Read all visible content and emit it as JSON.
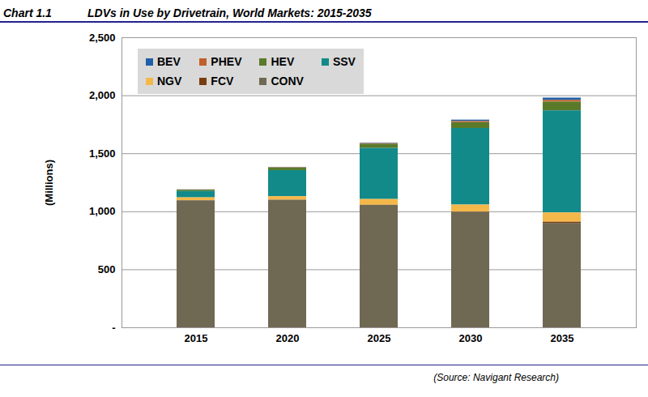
{
  "chart_data": {
    "type": "bar",
    "stacked": true,
    "label": "Chart 1.1",
    "title": "LDVs in Use by Drivetrain, World Markets: 2015-2035",
    "source": "(Source: Navigant Research)",
    "y_label": "(Millions)",
    "categories": [
      "2015",
      "2020",
      "2025",
      "2030",
      "2035"
    ],
    "series": [
      {
        "name": "BEV",
        "color": "#1f5fa8",
        "values": [
          1,
          3,
          5,
          12,
          20
        ]
      },
      {
        "name": "PHEV",
        "color": "#c0602a",
        "values": [
          1,
          3,
          6,
          10,
          15
        ]
      },
      {
        "name": "HEV",
        "color": "#5a7a2a",
        "values": [
          12,
          22,
          35,
          50,
          75
        ]
      },
      {
        "name": "SSV",
        "color": "#138a8a",
        "values": [
          55,
          225,
          440,
          660,
          880
        ]
      },
      {
        "name": "NGV",
        "color": "#f4b84a",
        "values": [
          25,
          30,
          50,
          60,
          80
        ]
      },
      {
        "name": "FCV",
        "color": "#7a3d10",
        "values": [
          0,
          0,
          1,
          3,
          10
        ]
      },
      {
        "name": "CONV",
        "color": "#6f6853",
        "values": [
          1095,
          1100,
          1055,
          995,
          900
        ]
      }
    ],
    "ylim": [
      0,
      2500
    ],
    "yticks": [
      {
        "value": 0,
        "label": "-"
      },
      500,
      {
        "value": 1000,
        "label": "1,000"
      },
      {
        "value": 1500,
        "label": "1,500"
      },
      {
        "value": 2000,
        "label": "2,000"
      },
      {
        "value": 2500,
        "label": "2,500"
      }
    ],
    "grid": true,
    "legend": "top-left"
  }
}
